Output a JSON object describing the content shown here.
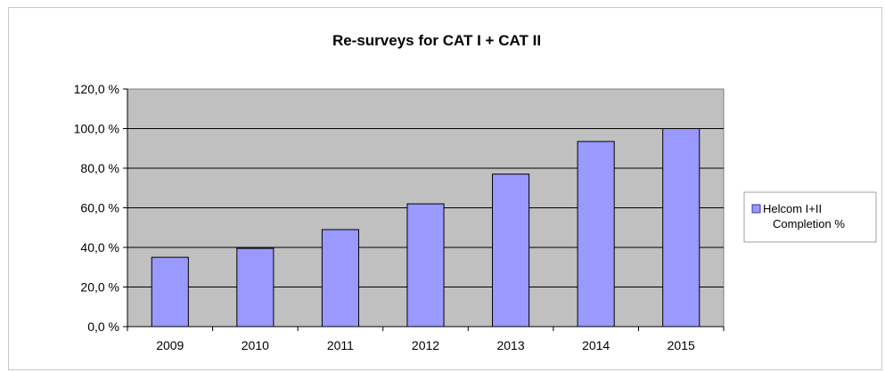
{
  "chart_data": {
    "type": "bar",
    "title": "Re-surveys for CAT I + CAT II",
    "categories": [
      "2009",
      "2010",
      "2011",
      "2012",
      "2013",
      "2014",
      "2015"
    ],
    "series": [
      {
        "name": "Helcom I+II Completion %",
        "legend_lines": [
          "Helcom I+II",
          "Completion %"
        ],
        "values": [
          35,
          39.5,
          49,
          62,
          77,
          93.5,
          100
        ],
        "color": "#9999ff"
      }
    ],
    "y_ticks": [
      {
        "value": 0,
        "label": "0,0 %"
      },
      {
        "value": 20,
        "label": "20,0 %"
      },
      {
        "value": 40,
        "label": "40,0 %"
      },
      {
        "value": 60,
        "label": "60,0 %"
      },
      {
        "value": 80,
        "label": "80,0 %"
      },
      {
        "value": 100,
        "label": "100,0 %"
      },
      {
        "value": 120,
        "label": "120,0 %"
      }
    ],
    "ylim": [
      0,
      120
    ],
    "grid": true,
    "plot_background": "#c0c0c0",
    "legend_position": "right"
  }
}
